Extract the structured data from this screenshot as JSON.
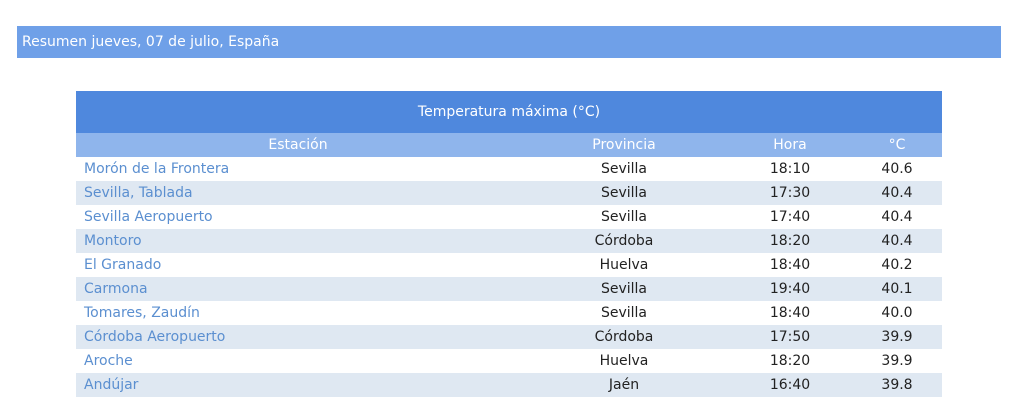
{
  "header": {
    "title": "Resumen jueves, 07 de julio, España"
  },
  "table": {
    "title": "Temperatura máxima (°C)",
    "columns": [
      "Estación",
      "Provincia",
      "Hora",
      "°C"
    ],
    "rows": [
      [
        "Morón de la Frontera",
        "Sevilla",
        "18:10",
        "40.6"
      ],
      [
        "Sevilla, Tablada",
        "Sevilla",
        "17:30",
        "40.4"
      ],
      [
        "Sevilla Aeropuerto",
        "Sevilla",
        "17:40",
        "40.4"
      ],
      [
        "Montoro",
        "Córdoba",
        "18:20",
        "40.4"
      ],
      [
        "El Granado",
        "Huelva",
        "18:40",
        "40.2"
      ],
      [
        "Carmona",
        "Sevilla",
        "19:40",
        "40.1"
      ],
      [
        "Tomares, Zaudín",
        "Sevilla",
        "18:40",
        "40.0"
      ],
      [
        "Córdoba Aeropuerto",
        "Córdoba",
        "17:50",
        "39.9"
      ],
      [
        "Aroche",
        "Huelva",
        "18:20",
        "39.9"
      ],
      [
        "Andújar",
        "Jaén",
        "16:40",
        "39.8"
      ]
    ]
  }
}
